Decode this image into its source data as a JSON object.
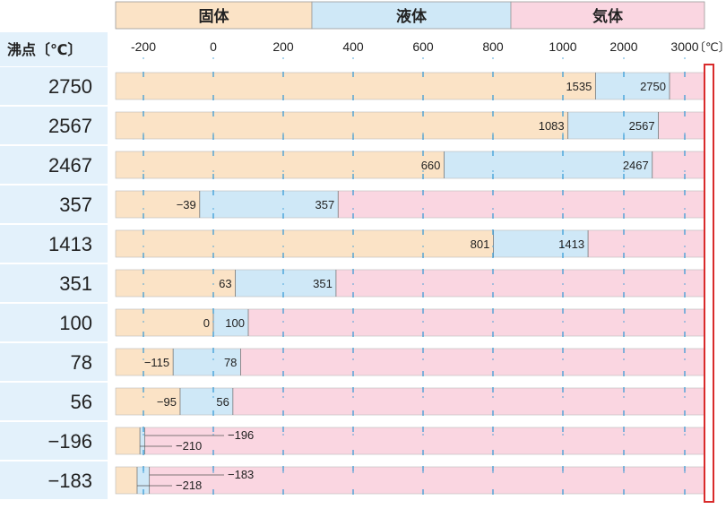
{
  "chart_data": {
    "type": "bar",
    "row_header": "沸点〔℃〕",
    "unit_label": "〔℃〕",
    "phases": [
      {
        "name": "固体",
        "color": "#fbe3c6"
      },
      {
        "name": "液体",
        "color": "#cfe8f7"
      },
      {
        "name": "気体",
        "color": "#fad6e1"
      }
    ],
    "x_ticks": [
      "-200",
      "0",
      "200",
      "400",
      "600",
      "800",
      "1000",
      "2000",
      "3000"
    ],
    "rows": [
      {
        "label": "2750",
        "melting": 1535,
        "boiling": 2750,
        "melt_label": "1535",
        "boil_label": "2750"
      },
      {
        "label": "2567",
        "melting": 1083,
        "boiling": 2567,
        "melt_label": "1083",
        "boil_label": "2567"
      },
      {
        "label": "2467",
        "melting": 660,
        "boiling": 2467,
        "melt_label": "660",
        "boil_label": "2467"
      },
      {
        "label": "357",
        "melting": -39,
        "boiling": 357,
        "melt_label": "−39",
        "boil_label": "357"
      },
      {
        "label": "1413",
        "melting": 801,
        "boiling": 1413,
        "melt_label": "801",
        "boil_label": "1413"
      },
      {
        "label": "351",
        "melting": 63,
        "boiling": 351,
        "melt_label": "63",
        "boil_label": "351"
      },
      {
        "label": "100",
        "melting": 0,
        "boiling": 100,
        "melt_label": "0",
        "boil_label": "100"
      },
      {
        "label": "78",
        "melting": -115,
        "boiling": 78,
        "melt_label": "−115",
        "boil_label": "78"
      },
      {
        "label": "56",
        "melting": -95,
        "boiling": 56,
        "melt_label": "−95",
        "boil_label": "56"
      },
      {
        "label": "−196",
        "melting": -210,
        "boiling": -196,
        "melt_label": "−210",
        "boil_label": "−196"
      },
      {
        "label": "−183",
        "melting": -218,
        "boiling": -183,
        "melt_label": "−218",
        "boil_label": "−183"
      }
    ],
    "colors": {
      "accent_red": "#d92b2b",
      "row_label_bg": "#e3f1fb",
      "grid": "#2f97d6",
      "label_column": "#ffffff"
    }
  }
}
